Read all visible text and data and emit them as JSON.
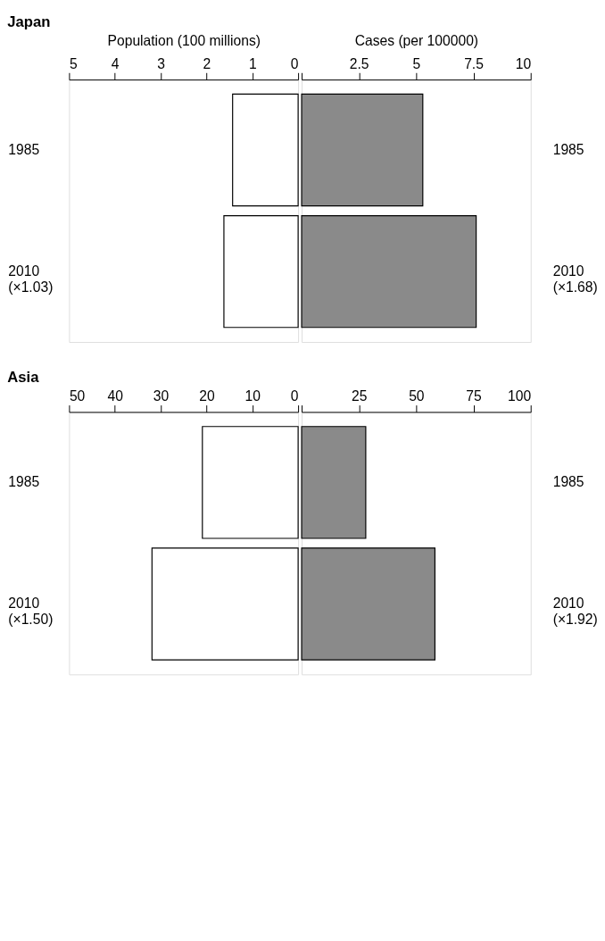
{
  "chart_data": [
    {
      "type": "bar",
      "orientation": "horizontal",
      "title": "Japan",
      "xlabel": "Population (100 millions)",
      "categories": [
        "1985",
        "2010\n(×1.03)"
      ],
      "values": [
        1.43,
        1.62
      ],
      "color": "#ffffff",
      "xlim": [
        5,
        0
      ],
      "xticks": [
        5,
        4,
        3,
        2,
        1,
        0
      ]
    },
    {
      "type": "bar",
      "orientation": "horizontal",
      "xlabel": "Cases (per 100000)",
      "categories": [
        "1985",
        "2010\n(×1.68)"
      ],
      "values": [
        5.29,
        7.62
      ],
      "color": "#8a8a8a",
      "xlim": [
        0,
        10
      ],
      "xticks": [
        {
          "value": 0,
          "label": null
        },
        2.5,
        5,
        7.5,
        10
      ]
    },
    {
      "type": "bar",
      "orientation": "horizontal",
      "title": "Asia",
      "categories": [
        "1985",
        "2010\n(×1.50)"
      ],
      "values": [
        20.9,
        31.9
      ],
      "color": "#ffffff",
      "xlim": [
        50,
        0
      ],
      "xticks": [
        50,
        40,
        30,
        20,
        10,
        0
      ]
    },
    {
      "type": "bar",
      "orientation": "horizontal",
      "categories": [
        "1985",
        "2010\n(×1.92)"
      ],
      "values": [
        28.0,
        58.2
      ],
      "color": "#8a8a8a",
      "xlim": [
        0,
        100
      ],
      "xticks": [
        {
          "value": 0,
          "label": null
        },
        25,
        50,
        75,
        100
      ]
    }
  ]
}
